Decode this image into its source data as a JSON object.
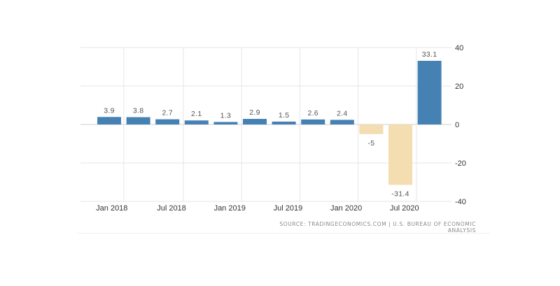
{
  "chart_data": {
    "type": "bar",
    "categories": [
      "Q1 2018",
      "Q2 2018",
      "Q3 2018",
      "Q4 2018",
      "Q1 2019",
      "Q2 2019",
      "Q3 2019",
      "Q4 2019",
      "Q1 2020",
      "Q2 2020",
      "Q3 2020",
      "Q4 2020"
    ],
    "values": [
      3.9,
      3.8,
      2.7,
      2.1,
      1.3,
      2.9,
      1.5,
      2.6,
      2.4,
      -5,
      -31.4,
      33.1
    ],
    "data_labels": [
      "3.9",
      "3.8",
      "2.7",
      "2.1",
      "1.3",
      "2.9",
      "1.5",
      "2.6",
      "2.4",
      "-5",
      "-31.4",
      "33.1"
    ],
    "x_tick_labels": [
      "Jan 2018",
      "Jul 2018",
      "Jan 2019",
      "Jul 2019",
      "Jan 2020",
      "Jul 2020"
    ],
    "y_ticks": [
      40,
      20,
      0,
      -20,
      -40
    ],
    "ylim": [
      -40,
      40
    ],
    "y_axis_side": "right",
    "grid": true,
    "legend": "none",
    "colors": {
      "positive": "#4681b4",
      "negative": "#f4ddb1"
    },
    "title": "",
    "xlabel": "",
    "ylabel": ""
  },
  "source": "SOURCE: TRADINGECONOMICS.COM | U.S. BUREAU OF ECONOMIC ANALYSIS"
}
